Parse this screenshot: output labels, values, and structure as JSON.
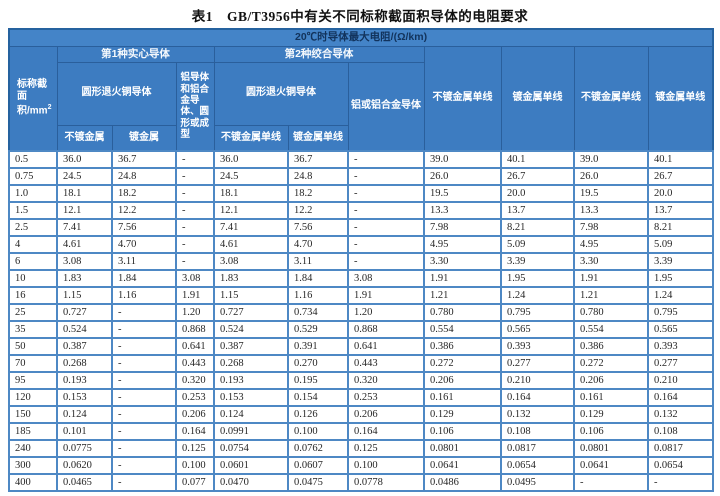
{
  "title": "表1　GB/T3956中有关不同标称截面积导体的电阻要求",
  "table": {
    "top_header": "20℃时导体最大电阻/(Ω/km)",
    "col1_header": {
      "text": "标称截面积/mm",
      "sup": "2"
    },
    "group1": "第1种实心导体",
    "group2": "第2种绞合导体",
    "sub1_copper": "圆形退火铜导体",
    "sub1_aluminum": "铝导体和铝合金导体、圆形或成型",
    "sub2_copper": "圆形退火铜导体",
    "sub2_aluminum": "铝或铝合金导体",
    "leaf_unplated": "不镀金属",
    "leaf_plated": "镀金属",
    "leaf_unplated_wire": "不镀金属单线",
    "leaf_plated_wire": "镀金属单线",
    "tall_headers": [
      "不镀金属单线",
      "镀金属单线",
      "不镀金属单线",
      "镀金属单线"
    ],
    "rows": [
      {
        "area": "0.5",
        "values": [
          "36.0",
          "36.7",
          "-",
          "36.0",
          "36.7",
          "-",
          "39.0",
          "40.1",
          "39.0",
          "40.1"
        ]
      },
      {
        "area": "0.75",
        "values": [
          "24.5",
          "24.8",
          "-",
          "24.5",
          "24.8",
          "-",
          "26.0",
          "26.7",
          "26.0",
          "26.7"
        ]
      },
      {
        "area": "1.0",
        "values": [
          "18.1",
          "18.2",
          "-",
          "18.1",
          "18.2",
          "-",
          "19.5",
          "20.0",
          "19.5",
          "20.0"
        ]
      },
      {
        "area": "1.5",
        "values": [
          "12.1",
          "12.2",
          "-",
          "12.1",
          "12.2",
          "-",
          "13.3",
          "13.7",
          "13.3",
          "13.7"
        ]
      },
      {
        "area": "2.5",
        "values": [
          "7.41",
          "7.56",
          "-",
          "7.41",
          "7.56",
          "-",
          "7.98",
          "8.21",
          "7.98",
          "8.21"
        ]
      },
      {
        "area": "4",
        "values": [
          "4.61",
          "4.70",
          "-",
          "4.61",
          "4.70",
          "-",
          "4.95",
          "5.09",
          "4.95",
          "5.09"
        ]
      },
      {
        "area": "6",
        "values": [
          "3.08",
          "3.11",
          "-",
          "3.08",
          "3.11",
          "-",
          "3.30",
          "3.39",
          "3.30",
          "3.39"
        ]
      },
      {
        "area": "10",
        "values": [
          "1.83",
          "1.84",
          "3.08",
          "1.83",
          "1.84",
          "3.08",
          "1.91",
          "1.95",
          "1.91",
          "1.95"
        ]
      },
      {
        "area": "16",
        "values": [
          "1.15",
          "1.16",
          "1.91",
          "1.15",
          "1.16",
          "1.91",
          "1.21",
          "1.24",
          "1.21",
          "1.24"
        ]
      },
      {
        "area": "25",
        "values": [
          "0.727",
          "-",
          "1.20",
          "0.727",
          "0.734",
          "1.20",
          "0.780",
          "0.795",
          "0.780",
          "0.795"
        ]
      },
      {
        "area": "35",
        "values": [
          "0.524",
          "-",
          "0.868",
          "0.524",
          "0.529",
          "0.868",
          "0.554",
          "0.565",
          "0.554",
          "0.565"
        ]
      },
      {
        "area": "50",
        "values": [
          "0.387",
          "-",
          "0.641",
          "0.387",
          "0.391",
          "0.641",
          "0.386",
          "0.393",
          "0.386",
          "0.393"
        ]
      },
      {
        "area": "70",
        "values": [
          "0.268",
          "-",
          "0.443",
          "0.268",
          "0.270",
          "0.443",
          "0.272",
          "0.277",
          "0.272",
          "0.277"
        ]
      },
      {
        "area": "95",
        "values": [
          "0.193",
          "-",
          "0.320",
          "0.193",
          "0.195",
          "0.320",
          "0.206",
          "0.210",
          "0.206",
          "0.210"
        ]
      },
      {
        "area": "120",
        "values": [
          "0.153",
          "-",
          "0.253",
          "0.153",
          "0.154",
          "0.253",
          "0.161",
          "0.164",
          "0.161",
          "0.164"
        ]
      },
      {
        "area": "150",
        "values": [
          "0.124",
          "-",
          "0.206",
          "0.124",
          "0.126",
          "0.206",
          "0.129",
          "0.132",
          "0.129",
          "0.132"
        ]
      },
      {
        "area": "185",
        "values": [
          "0.101",
          "-",
          "0.164",
          "0.0991",
          "0.100",
          "0.164",
          "0.106",
          "0.108",
          "0.106",
          "0.108"
        ]
      },
      {
        "area": "240",
        "values": [
          "0.0775",
          "-",
          "0.125",
          "0.0754",
          "0.0762",
          "0.125",
          "0.0801",
          "0.0817",
          "0.0801",
          "0.0817"
        ]
      },
      {
        "area": "300",
        "values": [
          "0.0620",
          "-",
          "0.100",
          "0.0601",
          "0.0607",
          "0.100",
          "0.0641",
          "0.0654",
          "0.0641",
          "0.0654"
        ]
      },
      {
        "area": "400",
        "values": [
          "0.0465",
          "-",
          "0.077",
          "0.0470",
          "0.0475",
          "0.0778",
          "0.0486",
          "0.0495",
          "-",
          "-"
        ]
      }
    ]
  }
}
